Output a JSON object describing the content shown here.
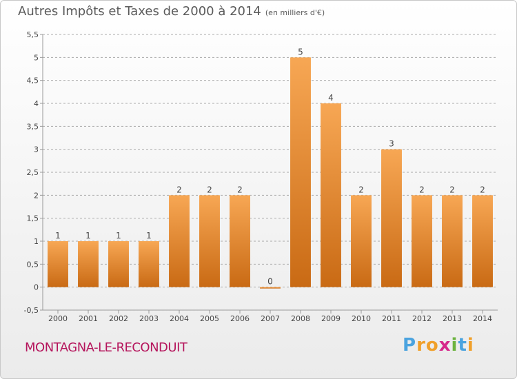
{
  "header": {
    "title": "Autres Impôts et Taxes de 2000 à 2014",
    "unit": "(en milliers d'€)"
  },
  "footer": {
    "commune": "MONTAGNA-LE-RECONDUIT",
    "brand": "Proxiti",
    "brand_letters": [
      "P",
      "r",
      "o",
      "x",
      "i",
      "t",
      "i"
    ],
    "brand_colors": [
      "#4aa3df",
      "#f0a02a",
      "#f0a02a",
      "#d6288a",
      "#6cb33f",
      "#4aa3df",
      "#f0a02a"
    ]
  },
  "colors": {
    "bar_light": "#f7a754",
    "bar_dark": "#c96a14",
    "grid": "#aaaaaa",
    "axis": "#999999",
    "text": "#444444"
  },
  "chart_data": {
    "type": "bar",
    "title": "Autres Impôts et Taxes de 2000 à 2014",
    "subtitle": "(en milliers d'€)",
    "categories": [
      "2000",
      "2001",
      "2002",
      "2003",
      "2004",
      "2005",
      "2006",
      "2007",
      "2008",
      "2009",
      "2010",
      "2011",
      "2012",
      "2013",
      "2014"
    ],
    "values": [
      1,
      1,
      1,
      1,
      2,
      2,
      2,
      0,
      5,
      4,
      2,
      3,
      2,
      2,
      2
    ],
    "data_labels": [
      "1",
      "1",
      "1",
      "1",
      "2",
      "2",
      "2",
      "0",
      "5",
      "4",
      "2",
      "3",
      "2",
      "2",
      "2"
    ],
    "ylim": [
      -0.5,
      5.5
    ],
    "yticks": [
      "-0,5",
      "0",
      "0,5",
      "1",
      "1,5",
      "2",
      "2,5",
      "3",
      "3,5",
      "4",
      "4,5",
      "5",
      "5,5"
    ],
    "ytick_values": [
      -0.5,
      0,
      0.5,
      1,
      1.5,
      2,
      2.5,
      3,
      3.5,
      4,
      4.5,
      5,
      5.5
    ],
    "xlabel": "",
    "ylabel": "",
    "grid": true
  }
}
